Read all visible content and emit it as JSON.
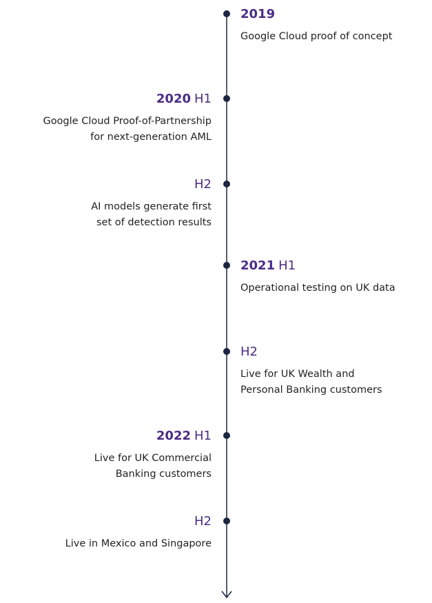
{
  "events": [
    {
      "year": "2019",
      "lines": [
        "Google Cloud proof of concept"
      ]
    },
    {
      "year": "2020",
      "half": "H1",
      "lines": [
        "Google Cloud Proof-of-Partnership",
        "for next-generation AML"
      ]
    },
    {
      "half": "H2",
      "lines": [
        "AI models generate first",
        "set of detection results"
      ]
    },
    {
      "year": "2021",
      "half": "H1",
      "lines": [
        "Operational testing on UK data"
      ]
    },
    {
      "half": "H2",
      "lines": [
        "Live for UK Wealth and",
        "Personal Banking customers"
      ]
    },
    {
      "year": "2022",
      "half": "H1",
      "lines": [
        "Live for UK Commercial",
        "Banking customers"
      ]
    },
    {
      "half": "H2",
      "lines": [
        "Live in Mexico and Singapore"
      ]
    }
  ]
}
